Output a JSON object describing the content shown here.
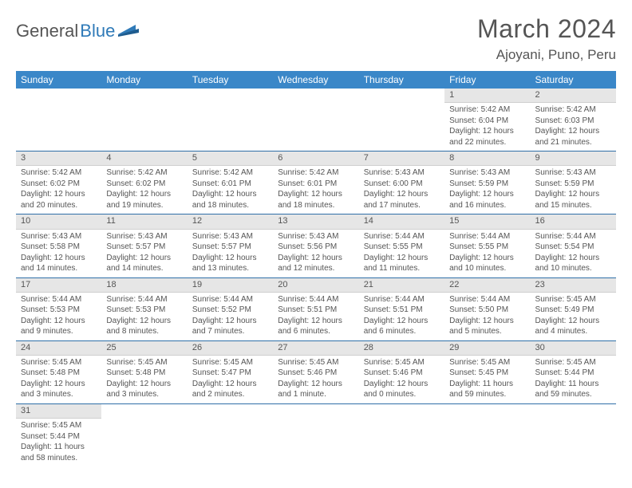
{
  "logo": {
    "text1": "General",
    "text2": "Blue"
  },
  "title": "March 2024",
  "location": "Ajoyani, Puno, Peru",
  "weekdays": [
    "Sunday",
    "Monday",
    "Tuesday",
    "Wednesday",
    "Thursday",
    "Friday",
    "Saturday"
  ],
  "colors": {
    "header_bg": "#3a87c8",
    "header_text": "#ffffff",
    "daynum_bg": "#e6e6e6",
    "body_text": "#555555",
    "accent": "#2f6fa8",
    "logo_blue": "#2f7ab8"
  },
  "weeks": [
    [
      {
        "n": "",
        "sr": "",
        "ss": "",
        "dl": ""
      },
      {
        "n": "",
        "sr": "",
        "ss": "",
        "dl": ""
      },
      {
        "n": "",
        "sr": "",
        "ss": "",
        "dl": ""
      },
      {
        "n": "",
        "sr": "",
        "ss": "",
        "dl": ""
      },
      {
        "n": "",
        "sr": "",
        "ss": "",
        "dl": ""
      },
      {
        "n": "1",
        "sr": "Sunrise: 5:42 AM",
        "ss": "Sunset: 6:04 PM",
        "dl": "Daylight: 12 hours and 22 minutes."
      },
      {
        "n": "2",
        "sr": "Sunrise: 5:42 AM",
        "ss": "Sunset: 6:03 PM",
        "dl": "Daylight: 12 hours and 21 minutes."
      }
    ],
    [
      {
        "n": "3",
        "sr": "Sunrise: 5:42 AM",
        "ss": "Sunset: 6:02 PM",
        "dl": "Daylight: 12 hours and 20 minutes."
      },
      {
        "n": "4",
        "sr": "Sunrise: 5:42 AM",
        "ss": "Sunset: 6:02 PM",
        "dl": "Daylight: 12 hours and 19 minutes."
      },
      {
        "n": "5",
        "sr": "Sunrise: 5:42 AM",
        "ss": "Sunset: 6:01 PM",
        "dl": "Daylight: 12 hours and 18 minutes."
      },
      {
        "n": "6",
        "sr": "Sunrise: 5:42 AM",
        "ss": "Sunset: 6:01 PM",
        "dl": "Daylight: 12 hours and 18 minutes."
      },
      {
        "n": "7",
        "sr": "Sunrise: 5:43 AM",
        "ss": "Sunset: 6:00 PM",
        "dl": "Daylight: 12 hours and 17 minutes."
      },
      {
        "n": "8",
        "sr": "Sunrise: 5:43 AM",
        "ss": "Sunset: 5:59 PM",
        "dl": "Daylight: 12 hours and 16 minutes."
      },
      {
        "n": "9",
        "sr": "Sunrise: 5:43 AM",
        "ss": "Sunset: 5:59 PM",
        "dl": "Daylight: 12 hours and 15 minutes."
      }
    ],
    [
      {
        "n": "10",
        "sr": "Sunrise: 5:43 AM",
        "ss": "Sunset: 5:58 PM",
        "dl": "Daylight: 12 hours and 14 minutes."
      },
      {
        "n": "11",
        "sr": "Sunrise: 5:43 AM",
        "ss": "Sunset: 5:57 PM",
        "dl": "Daylight: 12 hours and 14 minutes."
      },
      {
        "n": "12",
        "sr": "Sunrise: 5:43 AM",
        "ss": "Sunset: 5:57 PM",
        "dl": "Daylight: 12 hours and 13 minutes."
      },
      {
        "n": "13",
        "sr": "Sunrise: 5:43 AM",
        "ss": "Sunset: 5:56 PM",
        "dl": "Daylight: 12 hours and 12 minutes."
      },
      {
        "n": "14",
        "sr": "Sunrise: 5:44 AM",
        "ss": "Sunset: 5:55 PM",
        "dl": "Daylight: 12 hours and 11 minutes."
      },
      {
        "n": "15",
        "sr": "Sunrise: 5:44 AM",
        "ss": "Sunset: 5:55 PM",
        "dl": "Daylight: 12 hours and 10 minutes."
      },
      {
        "n": "16",
        "sr": "Sunrise: 5:44 AM",
        "ss": "Sunset: 5:54 PM",
        "dl": "Daylight: 12 hours and 10 minutes."
      }
    ],
    [
      {
        "n": "17",
        "sr": "Sunrise: 5:44 AM",
        "ss": "Sunset: 5:53 PM",
        "dl": "Daylight: 12 hours and 9 minutes."
      },
      {
        "n": "18",
        "sr": "Sunrise: 5:44 AM",
        "ss": "Sunset: 5:53 PM",
        "dl": "Daylight: 12 hours and 8 minutes."
      },
      {
        "n": "19",
        "sr": "Sunrise: 5:44 AM",
        "ss": "Sunset: 5:52 PM",
        "dl": "Daylight: 12 hours and 7 minutes."
      },
      {
        "n": "20",
        "sr": "Sunrise: 5:44 AM",
        "ss": "Sunset: 5:51 PM",
        "dl": "Daylight: 12 hours and 6 minutes."
      },
      {
        "n": "21",
        "sr": "Sunrise: 5:44 AM",
        "ss": "Sunset: 5:51 PM",
        "dl": "Daylight: 12 hours and 6 minutes."
      },
      {
        "n": "22",
        "sr": "Sunrise: 5:44 AM",
        "ss": "Sunset: 5:50 PM",
        "dl": "Daylight: 12 hours and 5 minutes."
      },
      {
        "n": "23",
        "sr": "Sunrise: 5:45 AM",
        "ss": "Sunset: 5:49 PM",
        "dl": "Daylight: 12 hours and 4 minutes."
      }
    ],
    [
      {
        "n": "24",
        "sr": "Sunrise: 5:45 AM",
        "ss": "Sunset: 5:48 PM",
        "dl": "Daylight: 12 hours and 3 minutes."
      },
      {
        "n": "25",
        "sr": "Sunrise: 5:45 AM",
        "ss": "Sunset: 5:48 PM",
        "dl": "Daylight: 12 hours and 3 minutes."
      },
      {
        "n": "26",
        "sr": "Sunrise: 5:45 AM",
        "ss": "Sunset: 5:47 PM",
        "dl": "Daylight: 12 hours and 2 minutes."
      },
      {
        "n": "27",
        "sr": "Sunrise: 5:45 AM",
        "ss": "Sunset: 5:46 PM",
        "dl": "Daylight: 12 hours and 1 minute."
      },
      {
        "n": "28",
        "sr": "Sunrise: 5:45 AM",
        "ss": "Sunset: 5:46 PM",
        "dl": "Daylight: 12 hours and 0 minutes."
      },
      {
        "n": "29",
        "sr": "Sunrise: 5:45 AM",
        "ss": "Sunset: 5:45 PM",
        "dl": "Daylight: 11 hours and 59 minutes."
      },
      {
        "n": "30",
        "sr": "Sunrise: 5:45 AM",
        "ss": "Sunset: 5:44 PM",
        "dl": "Daylight: 11 hours and 59 minutes."
      }
    ],
    [
      {
        "n": "31",
        "sr": "Sunrise: 5:45 AM",
        "ss": "Sunset: 5:44 PM",
        "dl": "Daylight: 11 hours and 58 minutes."
      },
      {
        "n": "",
        "sr": "",
        "ss": "",
        "dl": ""
      },
      {
        "n": "",
        "sr": "",
        "ss": "",
        "dl": ""
      },
      {
        "n": "",
        "sr": "",
        "ss": "",
        "dl": ""
      },
      {
        "n": "",
        "sr": "",
        "ss": "",
        "dl": ""
      },
      {
        "n": "",
        "sr": "",
        "ss": "",
        "dl": ""
      },
      {
        "n": "",
        "sr": "",
        "ss": "",
        "dl": ""
      }
    ]
  ]
}
